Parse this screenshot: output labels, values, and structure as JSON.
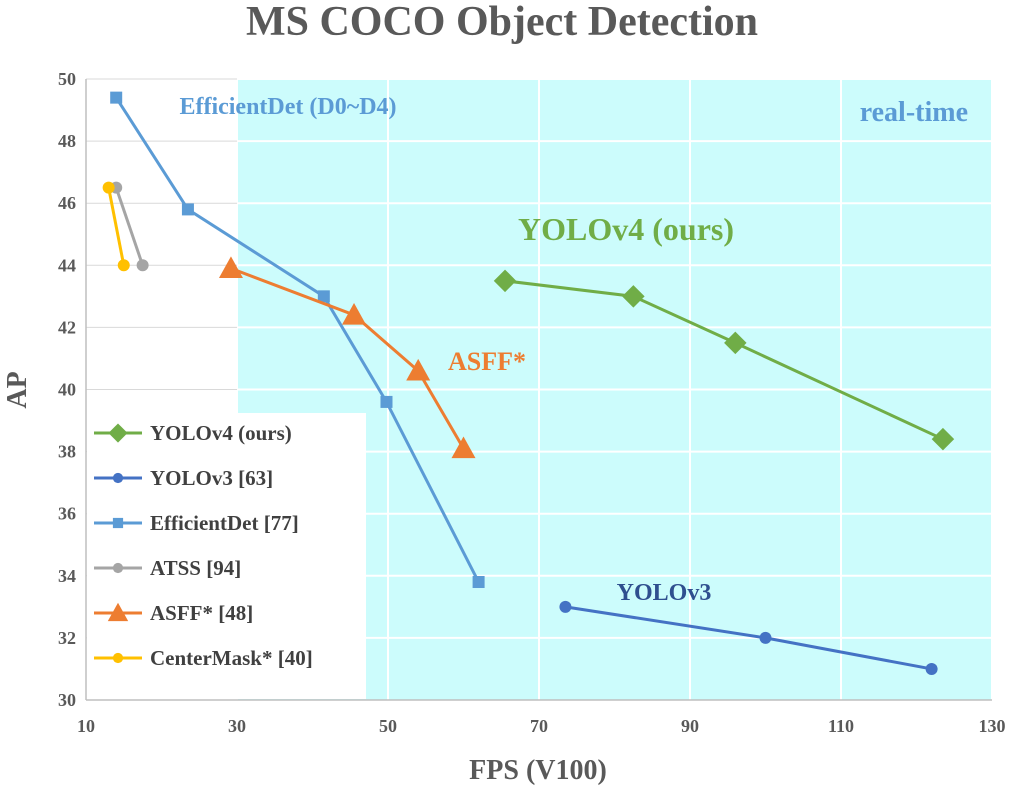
{
  "chart_data": {
    "type": "line",
    "title": "MS COCO Object Detection",
    "xlabel": "FPS (V100)",
    "ylabel": "AP",
    "xlim": [
      10,
      130
    ],
    "ylim": [
      30,
      50
    ],
    "x_ticks": [
      10,
      30,
      50,
      70,
      90,
      110,
      130
    ],
    "y_ticks": [
      30,
      32,
      34,
      36,
      38,
      40,
      42,
      44,
      46,
      48,
      50
    ],
    "grid": true,
    "realtime_region": {
      "label": "real-time",
      "fps_from": 30,
      "color": "#ccfcfc"
    },
    "legend_position": "bottom-left",
    "series": [
      {
        "name": "YOLOv4 (ours)",
        "color": "#70ad47",
        "marker": "diamond",
        "annotation": "YOLOv4 (ours)",
        "annotation_color": "#70ad47",
        "x": [
          65.5,
          82.5,
          96,
          123.5
        ],
        "y": [
          43.5,
          43.0,
          41.5,
          38.4
        ]
      },
      {
        "name": "YOLOv3 [63]",
        "color": "#4472c4",
        "marker": "circle",
        "annotation": "YOLOv3",
        "annotation_color": "#2f4f8f",
        "x": [
          73.5,
          100,
          122
        ],
        "y": [
          33.0,
          32.0,
          31.0
        ]
      },
      {
        "name": "EfficientDet [77]",
        "color": "#5b9bd5",
        "marker": "square",
        "annotation": "EfficientDet (D0~D4)",
        "annotation_color": "#5b9bd5",
        "x": [
          14,
          23.5,
          41.5,
          49.8,
          62
        ],
        "y": [
          49.4,
          45.8,
          43.0,
          39.6,
          33.8
        ]
      },
      {
        "name": "ATSS [94]",
        "color": "#a5a5a5",
        "marker": "circle",
        "x": [
          14,
          17.5
        ],
        "y": [
          46.5,
          44.0
        ]
      },
      {
        "name": "ASFF* [48]",
        "color": "#ed7d31",
        "marker": "triangle",
        "annotation": "ASFF*",
        "annotation_color": "#ed7d31",
        "x": [
          29.2,
          45.5,
          54,
          60
        ],
        "y": [
          43.9,
          42.4,
          40.6,
          38.1
        ]
      },
      {
        "name": "CenterMask* [40]",
        "color": "#ffc000",
        "marker": "circle",
        "x": [
          13,
          15
        ],
        "y": [
          46.5,
          44.0
        ]
      }
    ]
  }
}
